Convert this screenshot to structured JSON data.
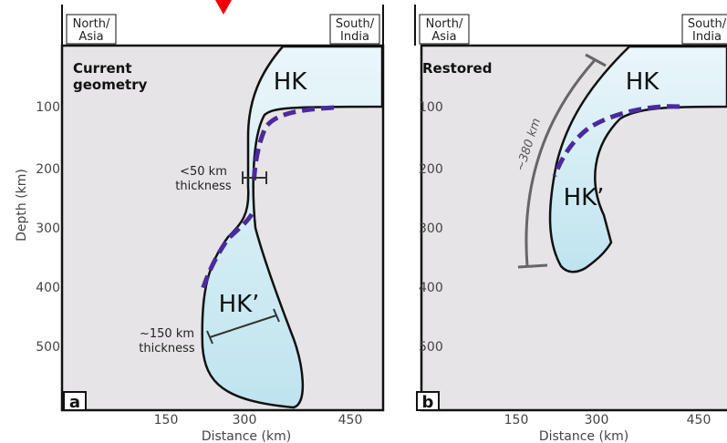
{
  "panels": [
    {
      "label": "a",
      "title_lines": [
        "Current",
        "geometry"
      ],
      "left_tag": [
        "North/",
        "Asia"
      ],
      "right_tag": [
        "South/",
        "India"
      ],
      "units": [
        "HK",
        "HK’"
      ],
      "annotations": [
        [
          "<50 km",
          "thickness"
        ],
        [
          "~150 km",
          "thickness"
        ]
      ],
      "yticks": [
        "100",
        "200",
        "300",
        "400",
        "500"
      ],
      "xticks": [
        "150",
        "300",
        "450"
      ],
      "xlabel": "Distance (km)",
      "ylabel": "Depth (km)"
    },
    {
      "label": "b",
      "title_lines": [
        "Restored"
      ],
      "left_tag": [
        "North/",
        "Asia"
      ],
      "right_tag": [
        "South/",
        "India"
      ],
      "units": [
        "HK",
        "HK’"
      ],
      "annotations": [
        [
          "~380 km"
        ]
      ],
      "yticks": [
        "100",
        "200",
        "300",
        "400",
        "500"
      ],
      "xticks": [
        "150",
        "300",
        "450"
      ],
      "xlabel": "Distance (km)"
    }
  ]
}
